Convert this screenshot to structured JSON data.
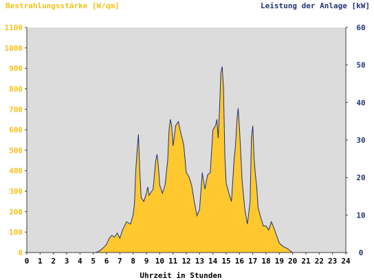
{
  "colors": {
    "background": "#ffffff",
    "plot_background": "#dcdcdc",
    "irradiance_fill": "#ffc82e",
    "power_line": "#1f2f78",
    "left_axis_text": "#f6c21a",
    "right_axis_text": "#23347a",
    "axis_line": "#3b3b3b"
  },
  "chart_data": {
    "type": "area",
    "title_left": "Bestrahlungsstärke [W/qm]",
    "title_right": "Leistung der Anlage [kW]",
    "xlabel": "Uhrzeit in Stunden",
    "xlim": [
      0,
      24
    ],
    "x_ticks": [
      "0",
      "1",
      "2",
      "3",
      "4",
      "5",
      "6",
      "7",
      "8",
      "9",
      "10",
      "11",
      "12",
      "13",
      "14",
      "15",
      "16",
      "17",
      "18",
      "19",
      "20",
      "21",
      "22",
      "23",
      "24"
    ],
    "ylim_left": [
      0,
      1100
    ],
    "y_ticks_left": [
      "0",
      "100",
      "200",
      "300",
      "400",
      "500",
      "600",
      "700",
      "800",
      "900",
      "1000",
      "1100"
    ],
    "ylim_right": [
      0,
      60
    ],
    "y_ticks_right": [
      "0",
      "10",
      "20",
      "30",
      "40",
      "50",
      "60"
    ],
    "grid": false,
    "series": [
      {
        "name": "Bestrahlungsstärke [W/qm]",
        "axis": "left",
        "x": [
          0,
          5.2,
          5.5,
          5.8,
          6.0,
          6.2,
          6.4,
          6.6,
          6.8,
          7.0,
          7.2,
          7.5,
          7.8,
          8.0,
          8.1,
          8.2,
          8.3,
          8.4,
          8.5,
          8.6,
          8.8,
          9.0,
          9.1,
          9.2,
          9.3,
          9.5,
          9.7,
          9.8,
          9.9,
          10.0,
          10.2,
          10.4,
          10.6,
          10.7,
          10.8,
          10.9,
          11.0,
          11.2,
          11.4,
          11.6,
          11.8,
          12.0,
          12.2,
          12.4,
          12.6,
          12.8,
          13.0,
          13.2,
          13.4,
          13.6,
          13.8,
          14.0,
          14.2,
          14.3,
          14.4,
          14.5,
          14.6,
          14.7,
          14.8,
          14.9,
          15.0,
          15.2,
          15.4,
          15.6,
          15.7,
          15.8,
          15.9,
          16.0,
          16.2,
          16.4,
          16.6,
          16.8,
          16.9,
          17.0,
          17.1,
          17.2,
          17.3,
          17.4,
          17.6,
          17.8,
          18.0,
          18.2,
          18.4,
          18.6,
          18.8,
          19.0,
          19.3,
          19.6,
          19.8,
          20.0,
          24
        ],
        "values": [
          0,
          0,
          10,
          25,
          40,
          70,
          85,
          75,
          95,
          70,
          110,
          150,
          140,
          185,
          240,
          400,
          500,
          540,
          400,
          270,
          250,
          290,
          320,
          280,
          290,
          310,
          450,
          480,
          420,
          330,
          290,
          330,
          450,
          600,
          650,
          620,
          520,
          620,
          640,
          580,
          530,
          390,
          370,
          330,
          250,
          180,
          210,
          390,
          310,
          380,
          390,
          600,
          620,
          650,
          560,
          700,
          880,
          910,
          800,
          470,
          340,
          290,
          250,
          460,
          520,
          640,
          700,
          610,
          350,
          210,
          140,
          250,
          560,
          590,
          460,
          380,
          320,
          220,
          170,
          130,
          130,
          110,
          150,
          120,
          80,
          45,
          30,
          20,
          10,
          0,
          0
        ]
      },
      {
        "name": "Leistung der Anlage [kW]",
        "axis": "right",
        "x": [
          0,
          5.2,
          5.5,
          5.8,
          6.0,
          6.2,
          6.4,
          6.6,
          6.8,
          7.0,
          7.2,
          7.5,
          7.8,
          8.0,
          8.1,
          8.2,
          8.3,
          8.4,
          8.5,
          8.6,
          8.8,
          9.0,
          9.1,
          9.2,
          9.3,
          9.5,
          9.7,
          9.8,
          9.9,
          10.0,
          10.2,
          10.4,
          10.6,
          10.7,
          10.8,
          10.9,
          11.0,
          11.2,
          11.4,
          11.6,
          11.8,
          12.0,
          12.2,
          12.4,
          12.6,
          12.8,
          13.0,
          13.2,
          13.4,
          13.6,
          13.8,
          14.0,
          14.2,
          14.3,
          14.4,
          14.5,
          14.6,
          14.7,
          14.8,
          14.9,
          15.0,
          15.2,
          15.4,
          15.6,
          15.7,
          15.8,
          15.9,
          16.0,
          16.2,
          16.4,
          16.6,
          16.8,
          16.9,
          17.0,
          17.1,
          17.2,
          17.3,
          17.4,
          17.6,
          17.8,
          18.0,
          18.2,
          18.4,
          18.6,
          18.8,
          19.0,
          19.3,
          19.6,
          19.8,
          20.0,
          24
        ],
        "values": [
          0,
          0,
          0.5,
          1.4,
          2.2,
          3.8,
          4.6,
          4.1,
          5.2,
          3.8,
          6,
          8.2,
          7.6,
          10.1,
          13.1,
          21.8,
          27.3,
          31.5,
          21.8,
          14.7,
          13.6,
          15.8,
          17.5,
          15.3,
          15.8,
          16.9,
          24.5,
          26.2,
          22.9,
          18,
          15.8,
          18,
          24.5,
          32.7,
          35.5,
          33.8,
          28.4,
          33.8,
          34.9,
          31.6,
          28.9,
          21.3,
          20.2,
          18,
          13.6,
          9.8,
          11.5,
          21.3,
          16.9,
          20.7,
          21.3,
          32.7,
          33.8,
          35.5,
          30.5,
          38.2,
          48,
          49.6,
          43.6,
          25.6,
          18.5,
          15.8,
          13.6,
          25.1,
          28.4,
          34.9,
          38.5,
          33.3,
          19.1,
          11.5,
          7.6,
          13.6,
          30.5,
          33.8,
          25.1,
          20.7,
          17.5,
          12,
          9.3,
          7.1,
          7.1,
          6,
          8.2,
          6.5,
          4.4,
          2.5,
          1.6,
          1.1,
          0.5,
          0,
          0
        ]
      }
    ]
  }
}
